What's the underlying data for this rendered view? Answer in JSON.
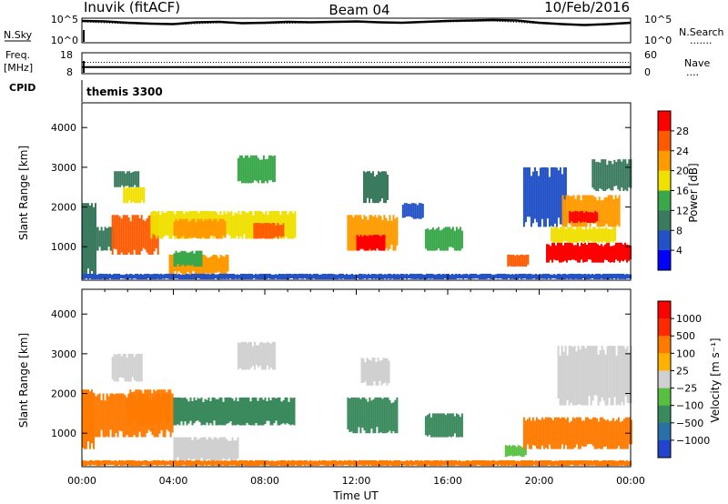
{
  "header": {
    "station": "Inuvik (fitACF)",
    "beam": "Beam 04",
    "date": "10/Feb/2016"
  },
  "nsky_panel": {
    "left_label": "N.Sky",
    "right_label": "N.Search",
    "legend_dots": "·······",
    "left_ticks": [
      "10^5",
      "10^0"
    ],
    "right_ticks": [
      "10^5",
      "10^0"
    ],
    "ylim": [
      0,
      5
    ],
    "scale": "log",
    "series": [
      {
        "name": "N.Sky",
        "x": [
          0,
          1,
          2,
          3,
          4,
          5,
          6,
          7,
          8,
          9,
          10,
          11,
          12,
          13,
          14,
          15,
          16,
          17,
          18,
          19,
          20,
          21,
          22,
          23,
          24
        ],
        "y": [
          4.6,
          4.5,
          4.2,
          4.0,
          3.9,
          4.3,
          4.4,
          4.1,
          4.2,
          4.4,
          4.3,
          4.4,
          4.5,
          4.3,
          4.2,
          4.4,
          4.6,
          4.7,
          4.8,
          4.7,
          4.2,
          3.9,
          3.7,
          3.9,
          4.2
        ]
      },
      {
        "name": "N.Search",
        "x": [
          0,
          2,
          4,
          6,
          8,
          10,
          12,
          14,
          16,
          18,
          20,
          22,
          24
        ],
        "y": [
          4.4,
          4.0,
          3.8,
          4.2,
          4.0,
          4.2,
          4.3,
          4.1,
          4.4,
          4.6,
          4.0,
          3.6,
          4.0
        ]
      }
    ]
  },
  "freq_panel": {
    "left_label": "Freq.",
    "left_unit": "[MHz]",
    "right_label": "Nave",
    "legend_dots": "····",
    "left_ticks": [
      "18",
      "8"
    ],
    "right_ticks": [
      "60",
      "0"
    ],
    "ylim": [
      8,
      18
    ],
    "series": [
      {
        "name": "Freq.",
        "x": [
          0,
          24
        ],
        "y": [
          11,
          11
        ]
      },
      {
        "name": "Nave",
        "x": [
          0,
          24
        ],
        "y": [
          33,
          33
        ]
      }
    ]
  },
  "cpid_panel": {
    "label": "CPID",
    "value": "themis 3300"
  },
  "chart_data": [
    {
      "type": "heatmap",
      "quantity": "power",
      "ylabel": "Slant Range [km]",
      "ylim": [
        180,
        4600
      ],
      "xlim": [
        0,
        24
      ],
      "y_ticks": [
        "1000",
        "2000",
        "3000",
        "4000"
      ],
      "colorbar_label": "Power [dB]",
      "colorbar_ticks": [
        "4",
        "8",
        "12",
        "16",
        "20",
        "24",
        "28"
      ],
      "colorbar_colors": [
        "#0000ff",
        "#2251c8",
        "#3a7a5e",
        "#3aa84a",
        "#f0e000",
        "#ff9a00",
        "#ff5a00",
        "#ff0000"
      ],
      "regions": [
        {
          "x": [
            0.0,
            0.6
          ],
          "y": [
            200,
            2100
          ],
          "level": 2
        },
        {
          "x": [
            0.5,
            1.4
          ],
          "y": [
            900,
            1500
          ],
          "level": 2
        },
        {
          "x": [
            1.3,
            3.3
          ],
          "y": [
            800,
            1800
          ],
          "level": 6
        },
        {
          "x": [
            3.0,
            9.3
          ],
          "y": [
            1200,
            1900
          ],
          "level": 4
        },
        {
          "x": [
            4.0,
            6.3
          ],
          "y": [
            1200,
            1700
          ],
          "level": 5
        },
        {
          "x": [
            7.5,
            8.8
          ],
          "y": [
            1200,
            1600
          ],
          "level": 6
        },
        {
          "x": [
            1.8,
            2.7
          ],
          "y": [
            2100,
            2500
          ],
          "level": 4
        },
        {
          "x": [
            1.4,
            2.5
          ],
          "y": [
            2500,
            2900
          ],
          "level": 2
        },
        {
          "x": [
            6.8,
            8.4
          ],
          "y": [
            2600,
            3300
          ],
          "level": 3
        },
        {
          "x": [
            3.8,
            6.4
          ],
          "y": [
            300,
            800
          ],
          "level": 5
        },
        {
          "x": [
            4.0,
            5.2
          ],
          "y": [
            500,
            900
          ],
          "level": 3
        },
        {
          "x": [
            11.6,
            13.8
          ],
          "y": [
            900,
            1800
          ],
          "level": 5
        },
        {
          "x": [
            12.0,
            13.2
          ],
          "y": [
            900,
            1300
          ],
          "level": 7
        },
        {
          "x": [
            12.3,
            13.4
          ],
          "y": [
            2100,
            2900
          ],
          "level": 2
        },
        {
          "x": [
            14.0,
            14.9
          ],
          "y": [
            1700,
            2100
          ],
          "level": 1
        },
        {
          "x": [
            15.0,
            16.6
          ],
          "y": [
            900,
            1500
          ],
          "level": 3
        },
        {
          "x": [
            18.6,
            19.5
          ],
          "y": [
            500,
            800
          ],
          "level": 6
        },
        {
          "x": [
            19.3,
            21.2
          ],
          "y": [
            1500,
            3000
          ],
          "level": 1
        },
        {
          "x": [
            20.3,
            24.0
          ],
          "y": [
            600,
            1100
          ],
          "level": 7
        },
        {
          "x": [
            20.5,
            23.3
          ],
          "y": [
            1100,
            1500
          ],
          "level": 4
        },
        {
          "x": [
            21.0,
            23.5
          ],
          "y": [
            1500,
            2300
          ],
          "level": 5
        },
        {
          "x": [
            21.3,
            22.5
          ],
          "y": [
            1600,
            1900
          ],
          "level": 7
        },
        {
          "x": [
            22.3,
            24.0
          ],
          "y": [
            2400,
            3200
          ],
          "level": 2
        },
        {
          "x": [
            0.0,
            24.0
          ],
          "y": [
            180,
            320
          ],
          "level": 1
        }
      ]
    },
    {
      "type": "heatmap",
      "quantity": "velocity",
      "xlabel": "Time UT",
      "ylabel": "Slant Range [km]",
      "ylim": [
        180,
        4600
      ],
      "xlim": [
        0,
        24
      ],
      "x_ticks": [
        "00:00",
        "04:00",
        "08:00",
        "12:00",
        "16:00",
        "20:00",
        "00:00"
      ],
      "y_ticks": [
        "1000",
        "2000",
        "3000",
        "4000"
      ],
      "colorbar_label": "Velocity [m s⁻¹]",
      "colorbar_ticks": [
        "1000",
        "500",
        "100",
        "25",
        "−25",
        "−100",
        "−500",
        "−1000"
      ],
      "colorbar_colors": [
        "#2244cc",
        "#2a6fa8",
        "#3a8a5e",
        "#58c040",
        "#d0d0d0",
        "#ffb000",
        "#ff7a00",
        "#ff2a00",
        "#ff0000"
      ],
      "regions": [
        {
          "x": [
            0.0,
            0.5
          ],
          "y": [
            600,
            2100
          ],
          "level": 6
        },
        {
          "x": [
            0.5,
            4.0
          ],
          "y": [
            900,
            2000
          ],
          "level": 6
        },
        {
          "x": [
            2.0,
            3.9
          ],
          "y": [
            1200,
            2100
          ],
          "level": 6
        },
        {
          "x": [
            4.0,
            9.3
          ],
          "y": [
            1200,
            1900
          ],
          "level": 2
        },
        {
          "x": [
            1.3,
            2.6
          ],
          "y": [
            2300,
            3000
          ],
          "level": 4
        },
        {
          "x": [
            6.8,
            8.4
          ],
          "y": [
            2600,
            3300
          ],
          "level": 4
        },
        {
          "x": [
            4.0,
            6.8
          ],
          "y": [
            300,
            900
          ],
          "level": 4
        },
        {
          "x": [
            11.6,
            13.8
          ],
          "y": [
            1000,
            1900
          ],
          "level": 2
        },
        {
          "x": [
            12.2,
            13.4
          ],
          "y": [
            2200,
            2900
          ],
          "level": 4
        },
        {
          "x": [
            15.0,
            16.6
          ],
          "y": [
            900,
            1500
          ],
          "level": 2
        },
        {
          "x": [
            18.5,
            19.4
          ],
          "y": [
            400,
            700
          ],
          "level": 3
        },
        {
          "x": [
            19.3,
            24.0
          ],
          "y": [
            600,
            1400
          ],
          "level": 6
        },
        {
          "x": [
            20.8,
            24.0
          ],
          "y": [
            1700,
            3200
          ],
          "level": 4
        },
        {
          "x": [
            0.0,
            24.0
          ],
          "y": [
            180,
            320
          ],
          "level": 6
        }
      ]
    }
  ]
}
